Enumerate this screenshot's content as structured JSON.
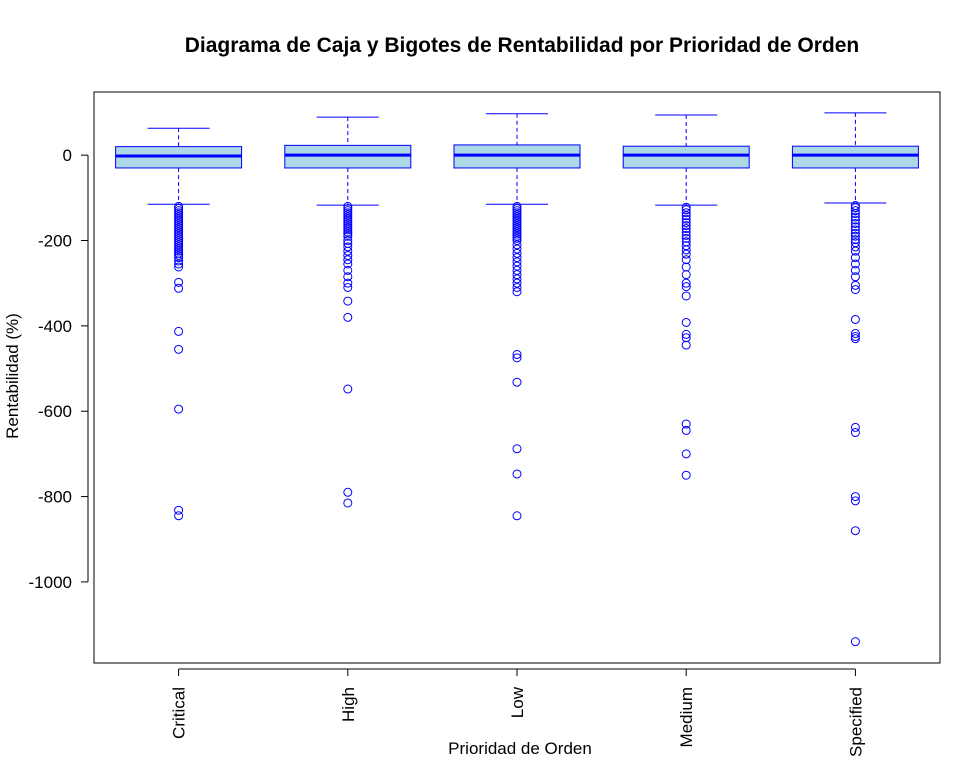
{
  "chart_data": {
    "type": "boxplot",
    "title": "Diagrama de Caja y Bigotes de Rentabilidad por Prioridad de Orden",
    "xlabel": "Prioridad de Orden",
    "ylabel": "Rentabilidad (%)",
    "ylim": [
      -1190,
      148
    ],
    "y_ticks": [
      0,
      -200,
      -400,
      -600,
      -800,
      -1000
    ],
    "y_tick_labels": [
      "0",
      "-200",
      "-400",
      "-600",
      "-800",
      "-1000"
    ],
    "categories": [
      "Critical",
      "High",
      "Low",
      "Medium",
      "Specified"
    ],
    "grid": false,
    "colors": {
      "box_fill": "#add8e6",
      "box_border": "#0000ff",
      "median": "#0000ff",
      "outlier": "#0000ff",
      "frame": "#000000"
    },
    "boxes": [
      {
        "category": "Critical",
        "whisker_low": -115,
        "q1": -30,
        "median": -2,
        "q3": 20,
        "whisker_high": 63,
        "outliers": [
          -120,
          -125,
          -130,
          -135,
          -140,
          -145,
          -150,
          -155,
          -160,
          -165,
          -170,
          -175,
          -180,
          -185,
          -190,
          -195,
          -200,
          -205,
          -210,
          -215,
          -220,
          -225,
          -230,
          -235,
          -240,
          -248,
          -255,
          -262,
          -298,
          -312,
          -413,
          -455,
          -595,
          -832,
          -845
        ]
      },
      {
        "category": "High",
        "whisker_low": -117,
        "q1": -30,
        "median": 0,
        "q3": 23,
        "whisker_high": 89,
        "outliers": [
          -120,
          -125,
          -130,
          -135,
          -140,
          -145,
          -150,
          -155,
          -160,
          -165,
          -170,
          -175,
          -180,
          -185,
          -190,
          -200,
          -207,
          -215,
          -225,
          -235,
          -245,
          -255,
          -270,
          -285,
          -300,
          -310,
          -342,
          -380,
          -548,
          -790,
          -815
        ]
      },
      {
        "category": "Low",
        "whisker_low": -115,
        "q1": -30,
        "median": 0,
        "q3": 24,
        "whisker_high": 97,
        "outliers": [
          -120,
          -125,
          -130,
          -135,
          -140,
          -145,
          -150,
          -155,
          -160,
          -165,
          -170,
          -175,
          -180,
          -185,
          -190,
          -195,
          -200,
          -210,
          -220,
          -230,
          -240,
          -250,
          -260,
          -270,
          -280,
          -290,
          -300,
          -310,
          -320,
          -467,
          -475,
          -532,
          -688,
          -747,
          -845
        ]
      },
      {
        "category": "Medium",
        "whisker_low": -117,
        "q1": -30,
        "median": 0,
        "q3": 21,
        "whisker_high": 94,
        "outliers": [
          -122,
          -128,
          -135,
          -142,
          -150,
          -158,
          -165,
          -172,
          -180,
          -188,
          -195,
          -203,
          -212,
          -222,
          -232,
          -245,
          -262,
          -280,
          -300,
          -308,
          -330,
          -392,
          -420,
          -428,
          -445,
          -630,
          -645,
          -700,
          -750
        ]
      },
      {
        "category": "Specified",
        "whisker_low": -112,
        "q1": -30,
        "median": 0,
        "q3": 21,
        "whisker_high": 99,
        "outliers": [
          -118,
          -123,
          -130,
          -137,
          -145,
          -152,
          -160,
          -168,
          -175,
          -183,
          -190,
          -198,
          -205,
          -215,
          -225,
          -240,
          -255,
          -270,
          -285,
          -305,
          -315,
          -385,
          -418,
          -425,
          -430,
          -638,
          -650,
          -800,
          -810,
          -880,
          -1140
        ]
      }
    ]
  }
}
